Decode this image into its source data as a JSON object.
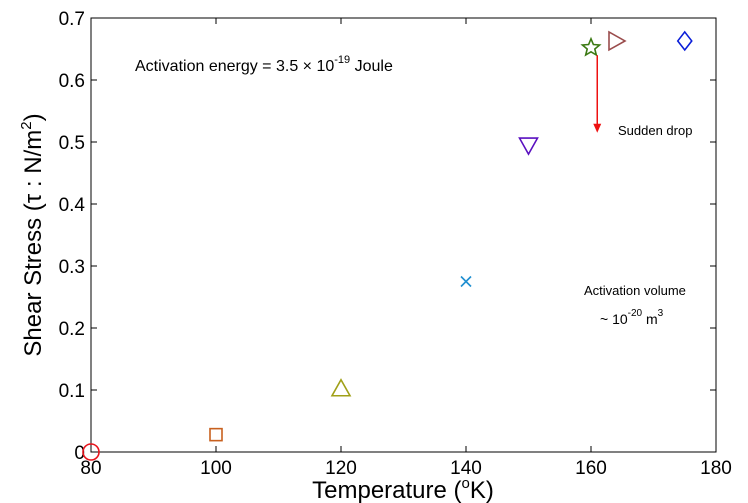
{
  "chart_data": {
    "type": "scatter",
    "title": "",
    "xlabel": "Temperature (°K)",
    "ylabel": "Shear Stress  (τ : N/m²)",
    "xlim": [
      80,
      180
    ],
    "ylim": [
      0,
      0.7
    ],
    "x_ticks": [
      80,
      100,
      120,
      140,
      160,
      180
    ],
    "y_ticks": [
      0,
      0.1,
      0.2,
      0.3,
      0.4,
      0.5,
      0.6,
      0.7
    ],
    "x_tick_labels": [
      "80",
      "100",
      "120",
      "140",
      "160",
      "180"
    ],
    "y_tick_labels": [
      "0",
      "0.1",
      "0.2",
      "0.3",
      "0.4",
      "0.5",
      "0.6",
      "0.7"
    ],
    "grid": false,
    "points": [
      {
        "x": 80,
        "y": 0,
        "marker": "circle",
        "color": "#e8141c"
      },
      {
        "x": 100,
        "y": 0.028,
        "marker": "square",
        "color": "#c8601e"
      },
      {
        "x": 120,
        "y": 0.102,
        "marker": "triangle-up",
        "color": "#a0a018"
      },
      {
        "x": 140,
        "y": 0.275,
        "marker": "x",
        "color": "#1f8fd0"
      },
      {
        "x": 150,
        "y": 0.495,
        "marker": "triangle-down",
        "color": "#5a10c0"
      },
      {
        "x": 160,
        "y": 0.652,
        "marker": "star",
        "color": "#3c7a14"
      },
      {
        "x": 164,
        "y": 0.663,
        "marker": "triangle-right",
        "color": "#9a4c4c"
      },
      {
        "x": 175,
        "y": 0.663,
        "marker": "diamond",
        "color": "#0a1ed8"
      }
    ],
    "arrow": {
      "x": 161,
      "y_from": 0.64,
      "y_to": 0.515,
      "color": "#ee1111"
    },
    "annotations": {
      "activation_energy": {
        "text_prefix": "Activation  energy = 3.5 × 10",
        "exponent": "-19",
        "suffix": " Joule"
      },
      "sudden_drop": "Sudden drop",
      "activation_volume_line1": "Activation volume",
      "activation_volume_line2_prefix": "~ 10",
      "activation_volume_line2_exp": "-20",
      "activation_volume_line2_unit": " m",
      "activation_volume_line2_unit_exp": "3"
    }
  }
}
